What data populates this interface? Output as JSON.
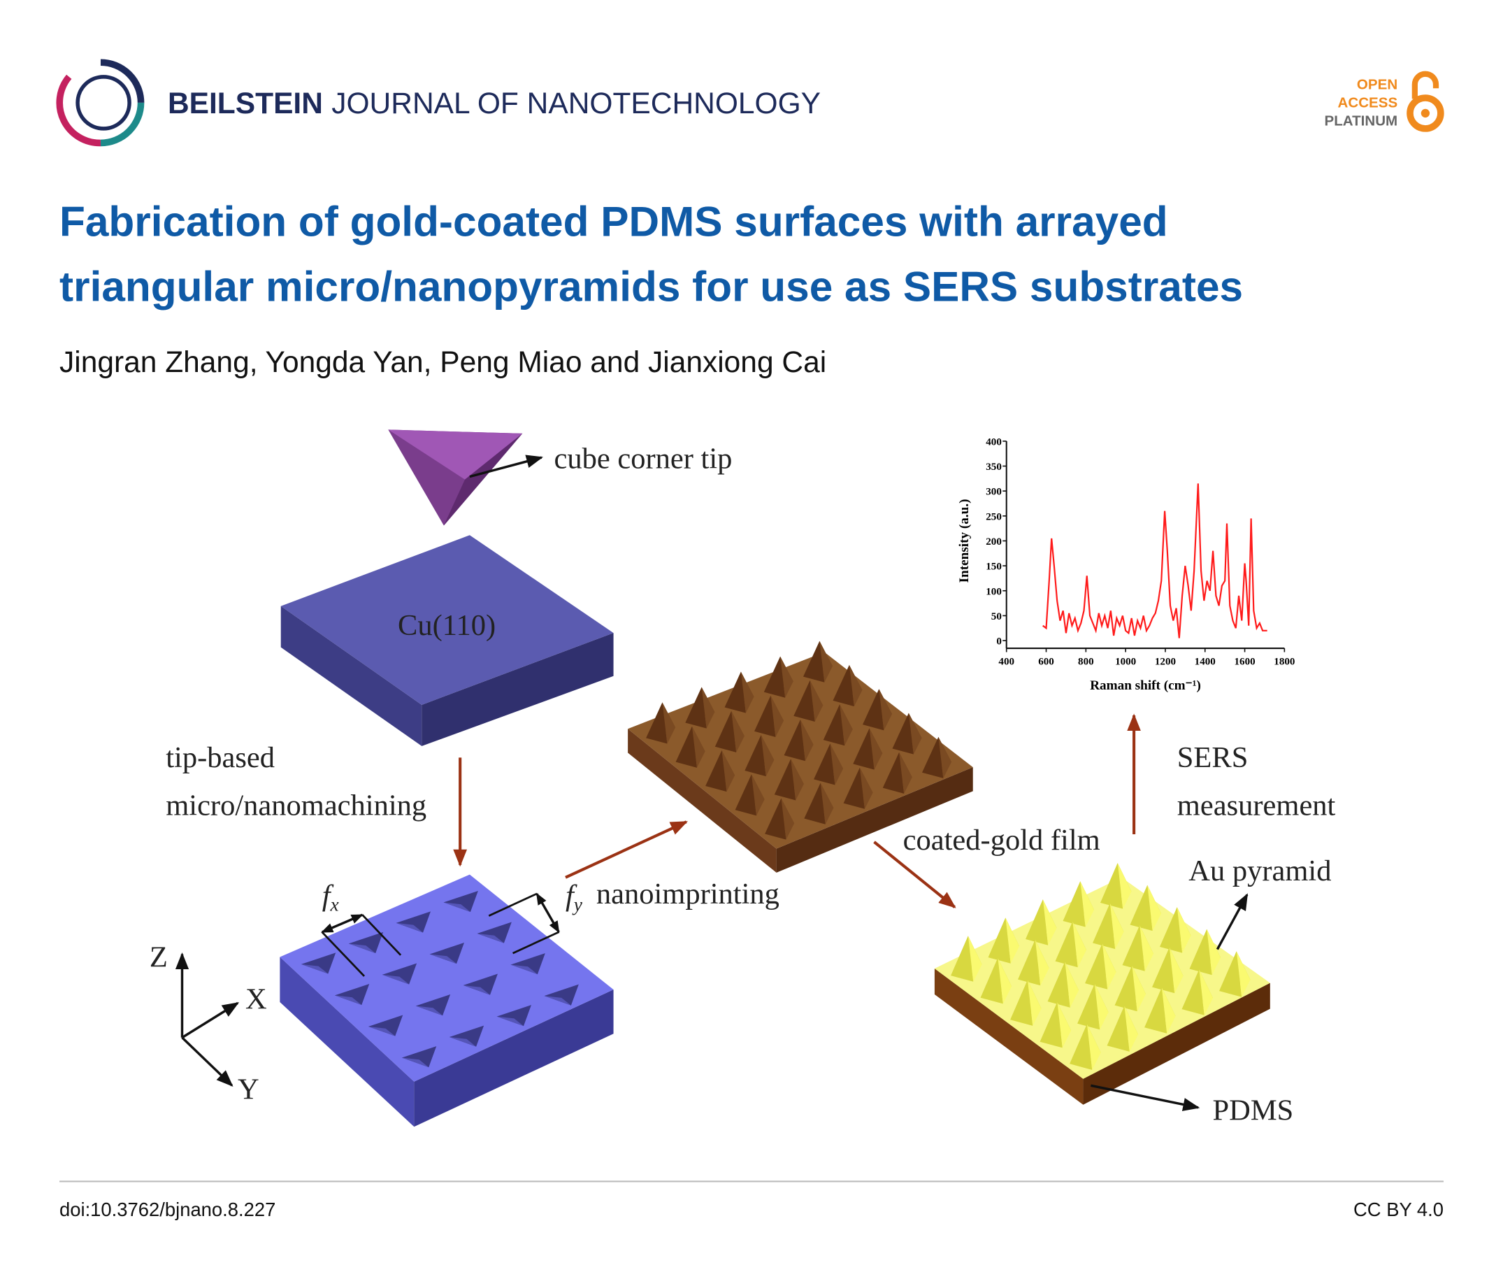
{
  "header": {
    "journal_bold": "BEILSTEIN",
    "journal_rest": "JOURNAL OF NANOTECHNOLOGY",
    "badge": [
      "OPEN",
      "ACCESS",
      "PLATINUM"
    ]
  },
  "title": [
    "Fabrication of gold-coated PDMS surfaces with arrayed",
    "triangular micro/nanopyramids for use as SERS substrates"
  ],
  "authors": "Jingran Zhang, Yongda Yan, Peng Miao and Jianxiong Cai",
  "figure": {
    "tip": "cube corner tip",
    "substrate": "Cu(110)",
    "machining": [
      "tip-based",
      "micro/nanomachining"
    ],
    "fx": [
      "f",
      "x"
    ],
    "fy": [
      "f",
      "y"
    ],
    "imprinting": "nanoimprinting",
    "coating": "coated-gold film",
    "sers": [
      "SERS",
      "measurement"
    ],
    "pyramid": "Au pyramid",
    "pdms": "PDMS",
    "axes": [
      "Z",
      "X",
      "Y"
    ]
  },
  "chart_data": {
    "type": "line",
    "x_label": "Raman shift (cm⁻¹)",
    "y_label": "Intensity (a.u.)",
    "x": [
      583,
      600,
      615,
      627,
      640,
      655,
      670,
      685,
      700,
      715,
      730,
      745,
      760,
      775,
      790,
      805,
      820,
      835,
      850,
      865,
      880,
      895,
      910,
      925,
      940,
      955,
      970,
      985,
      1000,
      1015,
      1030,
      1045,
      1060,
      1075,
      1090,
      1105,
      1120,
      1135,
      1150,
      1165,
      1180,
      1197,
      1210,
      1225,
      1240,
      1255,
      1270,
      1285,
      1300,
      1315,
      1330,
      1345,
      1365,
      1380,
      1395,
      1410,
      1425,
      1440,
      1455,
      1470,
      1485,
      1500,
      1510,
      1525,
      1540,
      1555,
      1570,
      1585,
      1600,
      1607,
      1620,
      1632,
      1645,
      1660,
      1675,
      1690,
      1713
    ],
    "series": [
      {
        "color": "#ff1a1a",
        "values": [
          30,
          25,
          120,
          205,
          150,
          80,
          40,
          60,
          15,
          55,
          30,
          45,
          20,
          35,
          60,
          130,
          50,
          35,
          20,
          55,
          30,
          50,
          25,
          60,
          10,
          45,
          30,
          50,
          20,
          15,
          45,
          10,
          40,
          25,
          50,
          20,
          30,
          45,
          55,
          80,
          120,
          260,
          180,
          70,
          40,
          65,
          5,
          90,
          150,
          110,
          60,
          140,
          315,
          140,
          80,
          120,
          100,
          180,
          90,
          70,
          110,
          120,
          235,
          70,
          40,
          25,
          90,
          40,
          155,
          120,
          30,
          245,
          60,
          25,
          35,
          20,
          20
        ]
      }
    ],
    "xlim": [
      400,
      1800
    ],
    "ylim": [
      0,
      400
    ],
    "xticks": [
      400,
      600,
      800,
      1000,
      1200,
      1400,
      1600,
      1800
    ],
    "yticks": [
      0,
      50,
      100,
      150,
      200,
      250,
      300,
      350,
      400
    ]
  },
  "footer": {
    "doi": "doi:10.3762/bjnano.8.227",
    "license": "CC BY 4.0"
  }
}
